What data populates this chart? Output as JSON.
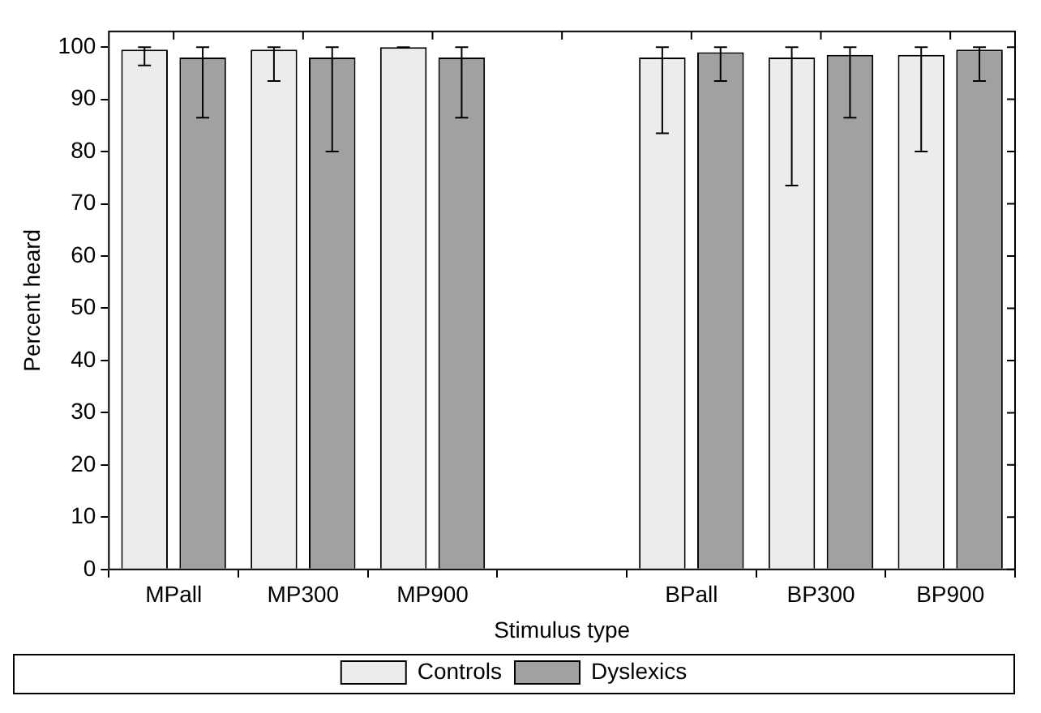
{
  "chart_data": {
    "type": "bar",
    "xlabel": "Stimulus type",
    "ylabel": "Percent heard",
    "categories": [
      "MPall",
      "MP300",
      "MP900",
      null,
      "BPall",
      "BP300",
      "BP900"
    ],
    "series": [
      {
        "name": "Controls",
        "color": "#ececec",
        "values": [
          99.5,
          99.5,
          100,
          null,
          98,
          98,
          98.5
        ],
        "errors": [
          [
            96.5,
            100
          ],
          [
            93.5,
            100
          ],
          [
            100,
            100
          ],
          null,
          [
            83.5,
            100
          ],
          [
            73.5,
            100
          ],
          [
            80,
            100
          ]
        ]
      },
      {
        "name": "Dyslexics",
        "color": "#a0a1a0",
        "values": [
          98,
          98,
          98,
          null,
          99,
          98.5,
          99.5
        ],
        "errors": [
          [
            86.5,
            100
          ],
          [
            80,
            100
          ],
          [
            86.5,
            100
          ],
          null,
          [
            93.5,
            100
          ],
          [
            86.5,
            100
          ],
          [
            93.5,
            100
          ]
        ]
      }
    ],
    "ylim": [
      0,
      103
    ],
    "yticks": [
      0,
      10,
      20,
      30,
      40,
      50,
      60,
      70,
      80,
      90,
      100
    ],
    "grid": false,
    "legend": "bottom"
  }
}
